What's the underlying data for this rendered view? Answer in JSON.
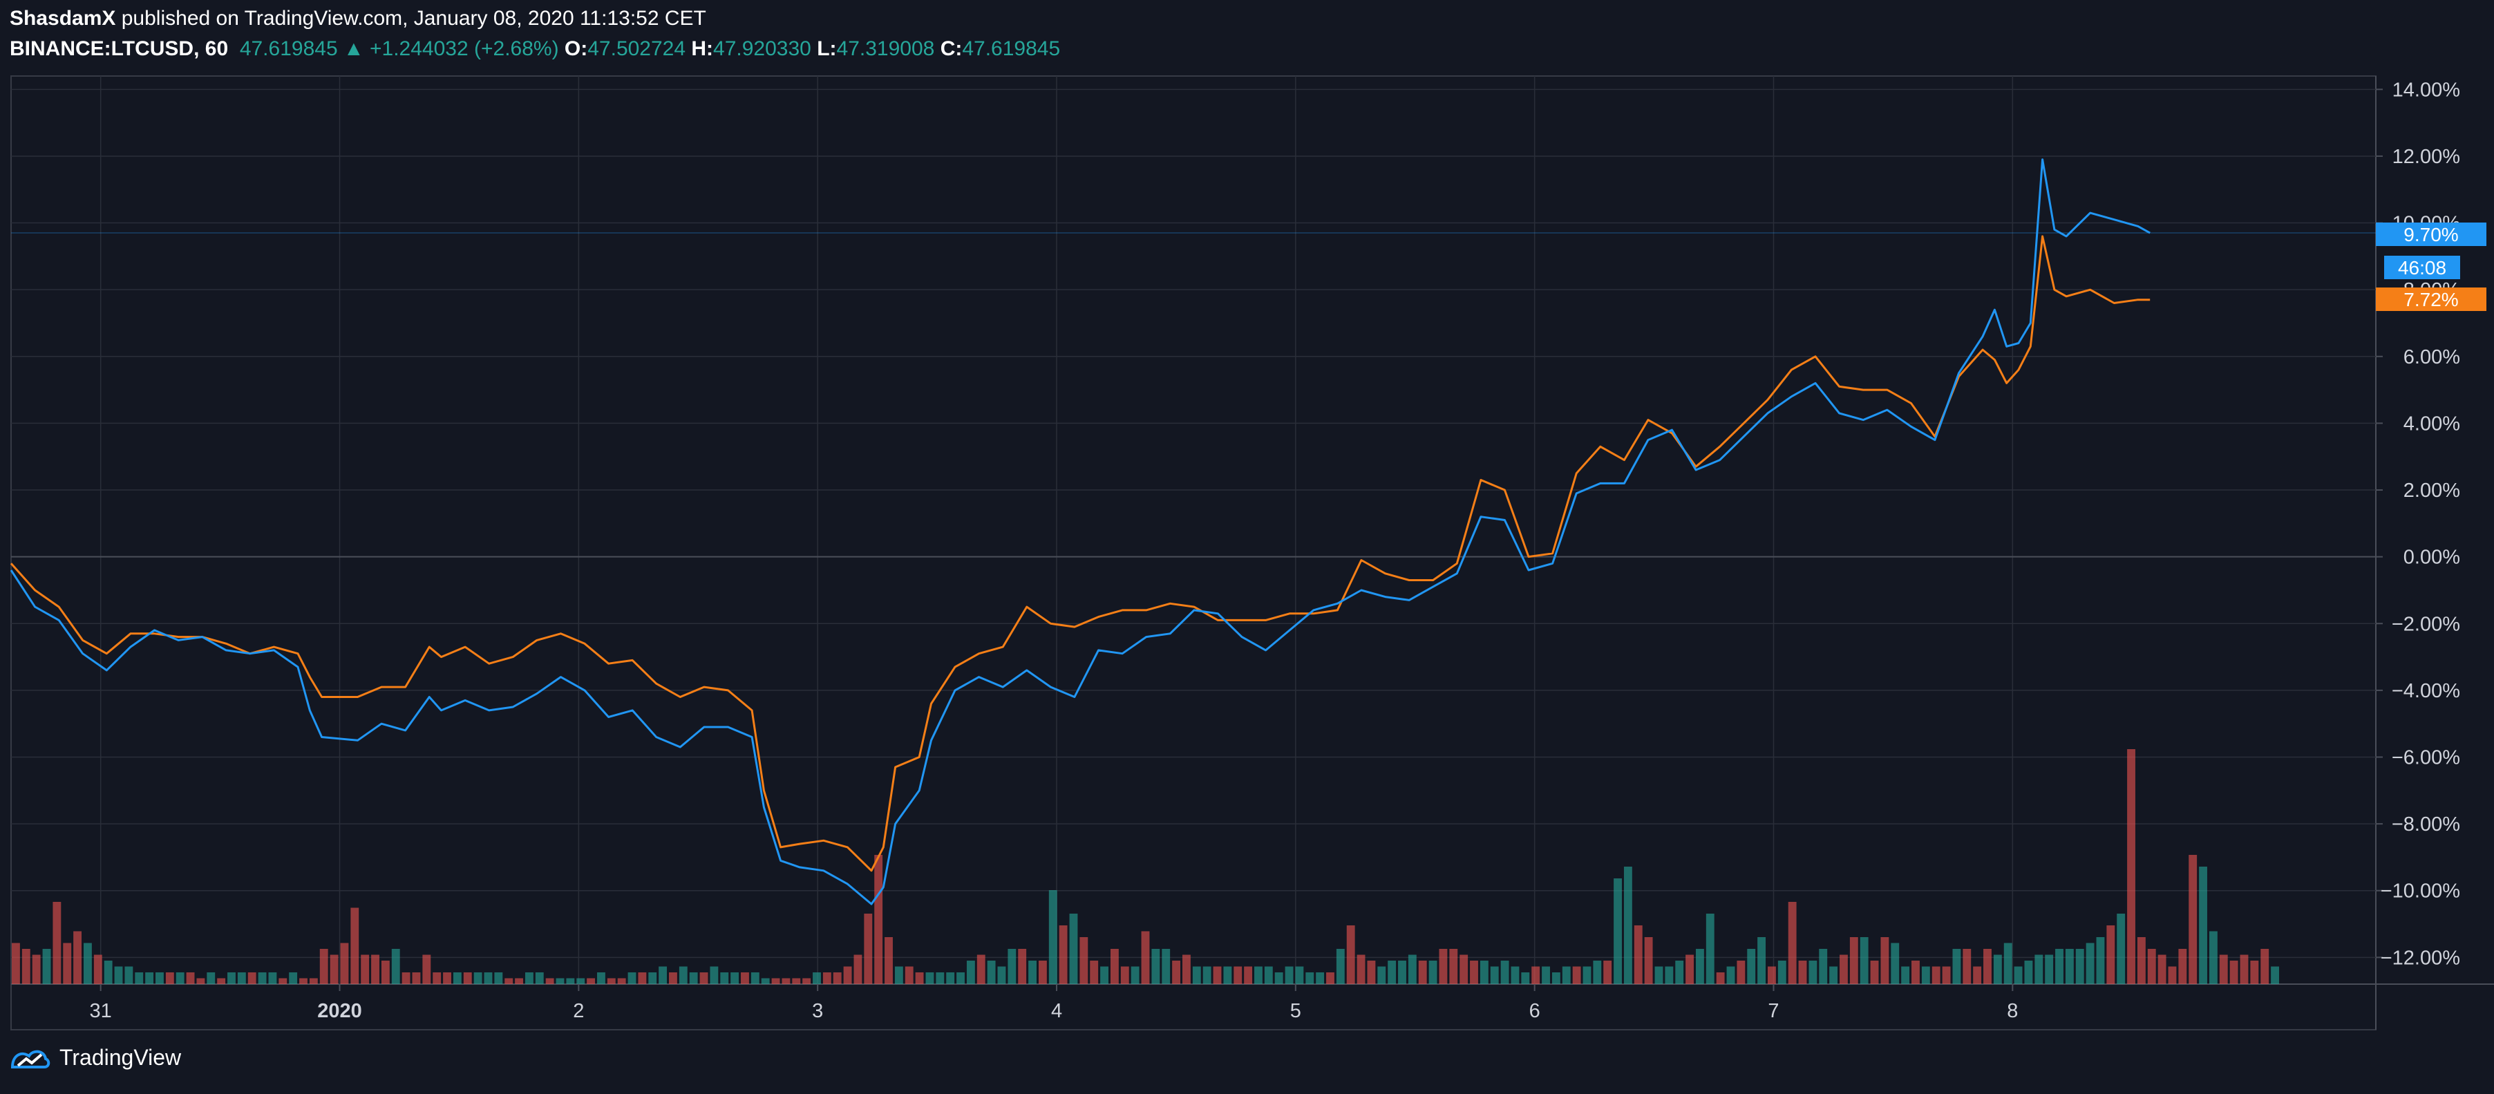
{
  "header": {
    "author": "ShasdamX",
    "published": "published on TradingView.com, January 08, 2020 11:13:52 CET",
    "symbol": "BINANCE:LTCUSD, 60",
    "last": "47.619845",
    "arrow": "▲",
    "change": "+1.244032 (+2.68%)",
    "o_label": "O:",
    "o_value": "47.502724",
    "h_label": "H:",
    "h_value": "47.920330",
    "l_label": "L:",
    "l_value": "47.319008",
    "c_label": "C:",
    "c_value": "47.619845"
  },
  "footer": {
    "brand": "TradingView"
  },
  "badges": {
    "blue_value": "9.70%",
    "countdown": "46:08",
    "orange_value": "7.72%"
  },
  "colors": {
    "background": "#131722",
    "grid": "#2a2e39",
    "blue_line": "#2196f3",
    "orange_line": "#f57f17",
    "vol_up": "#26a69a",
    "vol_down": "#ef5350"
  },
  "chart_data": {
    "type": "line",
    "y_unit": "%",
    "ylim": [
      -12.8,
      14.4
    ],
    "y_ticks": [
      "14.00%",
      "12.00%",
      "10.00%",
      "8.00%",
      "6.00%",
      "4.00%",
      "2.00%",
      "0.00%",
      "−2.00%",
      "−4.00%",
      "−6.00%",
      "−8.00%",
      "−10.00%",
      "−12.00%"
    ],
    "x_tick_labels": [
      {
        "label": "31",
        "day": 0.375
      },
      {
        "label": "2020",
        "day": 1.375
      },
      {
        "label": "2",
        "day": 2.375
      },
      {
        "label": "3",
        "day": 3.375
      },
      {
        "label": "4",
        "day": 4.375
      },
      {
        "label": "5",
        "day": 5.375
      },
      {
        "label": "6",
        "day": 6.375
      },
      {
        "label": "7",
        "day": 7.375
      },
      {
        "label": "8",
        "day": 8.375
      }
    ],
    "x_range_days": [
      0,
      9.895
    ],
    "grid": true,
    "series": [
      {
        "color": "#2196f3",
        "points": [
          [
            0.0,
            -0.4
          ],
          [
            0.1,
            -1.5
          ],
          [
            0.2,
            -1.9
          ],
          [
            0.3,
            -2.9
          ],
          [
            0.4,
            -3.4
          ],
          [
            0.5,
            -2.7
          ],
          [
            0.6,
            -2.2
          ],
          [
            0.7,
            -2.5
          ],
          [
            0.8,
            -2.4
          ],
          [
            0.9,
            -2.8
          ],
          [
            1.0,
            -2.9
          ],
          [
            1.1,
            -2.8
          ],
          [
            1.2,
            -3.3
          ],
          [
            1.25,
            -4.6
          ],
          [
            1.3,
            -5.4
          ],
          [
            1.45,
            -5.5
          ],
          [
            1.55,
            -5.0
          ],
          [
            1.65,
            -5.2
          ],
          [
            1.75,
            -4.2
          ],
          [
            1.8,
            -4.6
          ],
          [
            1.9,
            -4.3
          ],
          [
            2.0,
            -4.6
          ],
          [
            2.1,
            -4.5
          ],
          [
            2.2,
            -4.1
          ],
          [
            2.3,
            -3.6
          ],
          [
            2.4,
            -4.0
          ],
          [
            2.5,
            -4.8
          ],
          [
            2.6,
            -4.6
          ],
          [
            2.7,
            -5.4
          ],
          [
            2.8,
            -5.7
          ],
          [
            2.9,
            -5.1
          ],
          [
            3.0,
            -5.1
          ],
          [
            3.1,
            -5.4
          ],
          [
            3.15,
            -7.5
          ],
          [
            3.22,
            -9.1
          ],
          [
            3.3,
            -9.3
          ],
          [
            3.4,
            -9.4
          ],
          [
            3.5,
            -9.8
          ],
          [
            3.6,
            -10.4
          ],
          [
            3.65,
            -9.9
          ],
          [
            3.7,
            -8.0
          ],
          [
            3.8,
            -7.0
          ],
          [
            3.85,
            -5.5
          ],
          [
            3.95,
            -4.0
          ],
          [
            4.05,
            -3.6
          ],
          [
            4.15,
            -3.9
          ],
          [
            4.25,
            -3.4
          ],
          [
            4.35,
            -3.9
          ],
          [
            4.45,
            -4.2
          ],
          [
            4.55,
            -2.8
          ],
          [
            4.65,
            -2.9
          ],
          [
            4.75,
            -2.4
          ],
          [
            4.85,
            -2.3
          ],
          [
            4.95,
            -1.6
          ],
          [
            5.05,
            -1.7
          ],
          [
            5.15,
            -2.4
          ],
          [
            5.25,
            -2.8
          ],
          [
            5.35,
            -2.2
          ],
          [
            5.45,
            -1.6
          ],
          [
            5.55,
            -1.4
          ],
          [
            5.65,
            -1.0
          ],
          [
            5.75,
            -1.2
          ],
          [
            5.85,
            -1.3
          ],
          [
            5.95,
            -0.9
          ],
          [
            6.05,
            -0.5
          ],
          [
            6.15,
            1.2
          ],
          [
            6.25,
            1.1
          ],
          [
            6.35,
            -0.4
          ],
          [
            6.45,
            -0.2
          ],
          [
            6.55,
            1.9
          ],
          [
            6.65,
            2.2
          ],
          [
            6.75,
            2.2
          ],
          [
            6.85,
            3.5
          ],
          [
            6.95,
            3.8
          ],
          [
            7.05,
            2.6
          ],
          [
            7.15,
            2.9
          ],
          [
            7.25,
            3.6
          ],
          [
            7.35,
            4.3
          ],
          [
            7.45,
            4.8
          ],
          [
            7.55,
            5.2
          ],
          [
            7.65,
            4.3
          ],
          [
            7.75,
            4.1
          ],
          [
            7.85,
            4.4
          ],
          [
            7.95,
            3.9
          ],
          [
            8.05,
            3.5
          ],
          [
            8.15,
            5.5
          ],
          [
            8.25,
            6.6
          ],
          [
            8.3,
            7.4
          ],
          [
            8.35,
            6.3
          ],
          [
            8.4,
            6.4
          ],
          [
            8.45,
            7.0
          ],
          [
            8.5,
            11.9
          ],
          [
            8.55,
            9.8
          ],
          [
            8.6,
            9.6
          ],
          [
            8.7,
            10.3
          ],
          [
            8.8,
            10.1
          ],
          [
            8.9,
            9.9
          ],
          [
            8.95,
            9.7
          ]
        ]
      },
      {
        "color": "#f57f17",
        "points": [
          [
            0.0,
            -0.2
          ],
          [
            0.1,
            -1.0
          ],
          [
            0.2,
            -1.5
          ],
          [
            0.3,
            -2.5
          ],
          [
            0.4,
            -2.9
          ],
          [
            0.5,
            -2.3
          ],
          [
            0.6,
            -2.3
          ],
          [
            0.7,
            -2.4
          ],
          [
            0.8,
            -2.4
          ],
          [
            0.9,
            -2.6
          ],
          [
            1.0,
            -2.9
          ],
          [
            1.1,
            -2.7
          ],
          [
            1.2,
            -2.9
          ],
          [
            1.25,
            -3.6
          ],
          [
            1.3,
            -4.2
          ],
          [
            1.45,
            -4.2
          ],
          [
            1.55,
            -3.9
          ],
          [
            1.65,
            -3.9
          ],
          [
            1.75,
            -2.7
          ],
          [
            1.8,
            -3.0
          ],
          [
            1.9,
            -2.7
          ],
          [
            2.0,
            -3.2
          ],
          [
            2.1,
            -3.0
          ],
          [
            2.2,
            -2.5
          ],
          [
            2.3,
            -2.3
          ],
          [
            2.4,
            -2.6
          ],
          [
            2.5,
            -3.2
          ],
          [
            2.6,
            -3.1
          ],
          [
            2.7,
            -3.8
          ],
          [
            2.8,
            -4.2
          ],
          [
            2.9,
            -3.9
          ],
          [
            3.0,
            -4.0
          ],
          [
            3.1,
            -4.6
          ],
          [
            3.15,
            -7.0
          ],
          [
            3.22,
            -8.7
          ],
          [
            3.3,
            -8.6
          ],
          [
            3.4,
            -8.5
          ],
          [
            3.5,
            -8.7
          ],
          [
            3.6,
            -9.4
          ],
          [
            3.65,
            -8.7
          ],
          [
            3.7,
            -6.3
          ],
          [
            3.8,
            -6.0
          ],
          [
            3.85,
            -4.4
          ],
          [
            3.95,
            -3.3
          ],
          [
            4.05,
            -2.9
          ],
          [
            4.15,
            -2.7
          ],
          [
            4.25,
            -1.5
          ],
          [
            4.35,
            -2.0
          ],
          [
            4.45,
            -2.1
          ],
          [
            4.55,
            -1.8
          ],
          [
            4.65,
            -1.6
          ],
          [
            4.75,
            -1.6
          ],
          [
            4.85,
            -1.4
          ],
          [
            4.95,
            -1.5
          ],
          [
            5.05,
            -1.9
          ],
          [
            5.15,
            -1.9
          ],
          [
            5.25,
            -1.9
          ],
          [
            5.35,
            -1.7
          ],
          [
            5.45,
            -1.7
          ],
          [
            5.55,
            -1.6
          ],
          [
            5.65,
            -0.1
          ],
          [
            5.75,
            -0.5
          ],
          [
            5.85,
            -0.7
          ],
          [
            5.95,
            -0.7
          ],
          [
            6.05,
            -0.2
          ],
          [
            6.15,
            2.3
          ],
          [
            6.25,
            2.0
          ],
          [
            6.35,
            0.0
          ],
          [
            6.45,
            0.1
          ],
          [
            6.55,
            2.5
          ],
          [
            6.65,
            3.3
          ],
          [
            6.75,
            2.9
          ],
          [
            6.85,
            4.1
          ],
          [
            6.95,
            3.7
          ],
          [
            7.05,
            2.7
          ],
          [
            7.15,
            3.3
          ],
          [
            7.25,
            4.0
          ],
          [
            7.35,
            4.7
          ],
          [
            7.45,
            5.6
          ],
          [
            7.55,
            6.0
          ],
          [
            7.65,
            5.1
          ],
          [
            7.75,
            5.0
          ],
          [
            7.85,
            5.0
          ],
          [
            7.95,
            4.6
          ],
          [
            8.05,
            3.6
          ],
          [
            8.15,
            5.4
          ],
          [
            8.25,
            6.2
          ],
          [
            8.3,
            5.9
          ],
          [
            8.35,
            5.2
          ],
          [
            8.4,
            5.6
          ],
          [
            8.45,
            6.3
          ],
          [
            8.5,
            9.6
          ],
          [
            8.55,
            8.0
          ],
          [
            8.6,
            7.8
          ],
          [
            8.7,
            8.0
          ],
          [
            8.8,
            7.6
          ],
          [
            8.9,
            7.7
          ],
          [
            8.95,
            7.7
          ]
        ]
      }
    ],
    "volume": {
      "values": [
        7,
        6,
        5,
        6,
        14,
        7,
        9,
        7,
        5,
        4,
        3,
        3,
        2,
        2,
        2,
        2,
        2,
        2,
        1,
        2,
        1,
        2,
        2,
        2,
        2,
        2,
        1,
        2,
        1,
        1,
        6,
        5,
        7,
        13,
        5,
        5,
        4,
        6,
        2,
        2,
        5,
        2,
        2,
        2,
        2,
        2,
        2,
        2,
        1,
        1,
        2,
        2,
        1,
        1,
        1,
        1,
        1,
        2,
        1,
        1,
        2,
        2,
        2,
        3,
        2,
        3,
        2,
        2,
        3,
        2,
        2,
        2,
        2,
        1,
        1,
        1,
        1,
        1,
        2,
        2,
        2,
        3,
        5,
        12,
        22,
        8,
        3,
        3,
        2,
        2,
        2,
        2,
        2,
        4,
        5,
        4,
        3,
        6,
        6,
        4,
        4,
        16,
        10,
        12,
        8,
        4,
        3,
        6,
        3,
        3,
        9,
        6,
        6,
        4,
        5,
        3,
        3,
        3,
        3,
        3,
        3,
        3,
        3,
        2,
        3,
        3,
        2,
        2,
        2,
        6,
        10,
        5,
        4,
        3,
        4,
        4,
        5,
        4,
        4,
        6,
        6,
        5,
        4,
        4,
        3,
        4,
        3,
        2,
        3,
        3,
        2,
        3,
        3,
        3,
        4,
        4,
        18,
        20,
        10,
        8,
        3,
        3,
        4,
        5,
        6,
        12,
        2,
        3,
        4,
        6,
        8,
        3,
        4,
        14,
        4,
        4,
        6,
        3,
        5,
        8,
        8,
        4,
        8,
        7,
        3,
        4,
        3,
        3,
        3,
        6,
        6,
        3,
        6,
        5,
        7,
        3,
        4,
        5,
        5,
        6,
        6,
        6,
        7,
        8,
        10,
        12,
        40,
        8,
        6,
        5,
        3,
        6,
        22,
        20,
        9,
        5,
        4,
        5,
        4,
        6,
        3
      ],
      "up": [
        0,
        0,
        0,
        1,
        0,
        0,
        0,
        1,
        0,
        1,
        1,
        1,
        1,
        1,
        1,
        0,
        1,
        0,
        0,
        1,
        0,
        1,
        1,
        0,
        1,
        1,
        0,
        1,
        0,
        0,
        0,
        0,
        0,
        0,
        0,
        0,
        0,
        1,
        0,
        0,
        0,
        0,
        0,
        1,
        0,
        1,
        1,
        1,
        0,
        0,
        1,
        1,
        0,
        1,
        1,
        1,
        0,
        1,
        0,
        0,
        1,
        0,
        1,
        1,
        0,
        1,
        1,
        0,
        1,
        1,
        1,
        0,
        1,
        1,
        0,
        0,
        0,
        0,
        1,
        0,
        0,
        0,
        0,
        0,
        0,
        0,
        1,
        0,
        0,
        1,
        1,
        1,
        1,
        1,
        0,
        1,
        1,
        1,
        0,
        1,
        0,
        1,
        0,
        1,
        0,
        0,
        1,
        0,
        0,
        1,
        0,
        1,
        1,
        0,
        0,
        1,
        1,
        0,
        1,
        0,
        0,
        1,
        1,
        1,
        1,
        1,
        1,
        1,
        0,
        1,
        0,
        0,
        0,
        1,
        1,
        1,
        1,
        0,
        1,
        0,
        0,
        0,
        0,
        1,
        1,
        1,
        1,
        1,
        0,
        1,
        1,
        1,
        0,
        1,
        1,
        0,
        1,
        1,
        0,
        0,
        1,
        1,
        1,
        0,
        1,
        1,
        0,
        1,
        0,
        1,
        1,
        0,
        1,
        0,
        0,
        1,
        1,
        1,
        0,
        0,
        1,
        0,
        0,
        1,
        1,
        0,
        1,
        0,
        0,
        1,
        0,
        0,
        0,
        1,
        1,
        1,
        1,
        1,
        1,
        1,
        1,
        1,
        1,
        1,
        0,
        1,
        0,
        0,
        0,
        0,
        0,
        0,
        0,
        1,
        1,
        0,
        0,
        0,
        0,
        0,
        1
      ]
    }
  }
}
